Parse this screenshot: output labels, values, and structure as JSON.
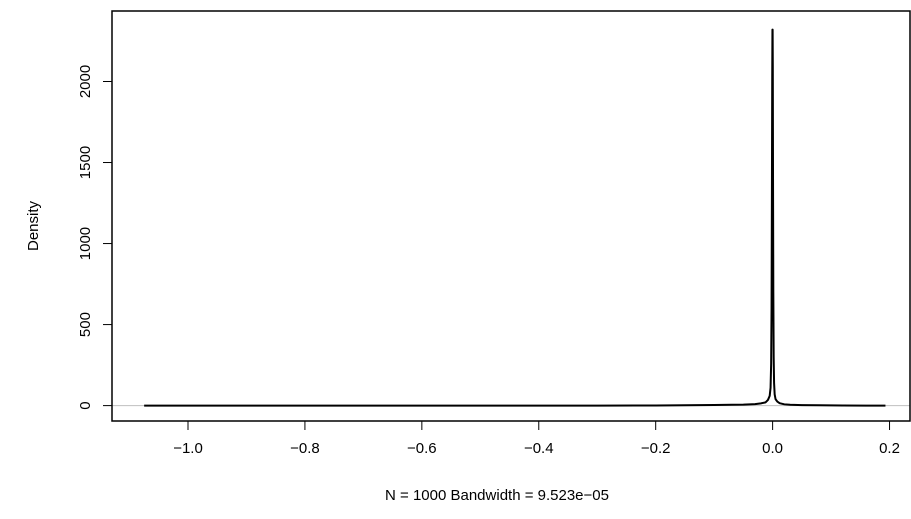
{
  "chart_data": {
    "type": "line",
    "title": "",
    "xlabel": "N = 1000   Bandwidth = 9.523e−05",
    "ylabel": "Density",
    "xlim": [
      -1.13,
      0.235
    ],
    "ylim": [
      -95,
      2435
    ],
    "x_ticks": [
      -1.0,
      -0.8,
      -0.6,
      -0.4,
      -0.2,
      0.0,
      0.2
    ],
    "x_tick_labels": [
      "−1.0",
      "−0.8",
      "−0.6",
      "−0.4",
      "−0.2",
      "0.0",
      "0.2"
    ],
    "y_ticks": [
      0,
      500,
      1000,
      1500,
      2000
    ],
    "y_tick_labels": [
      "0",
      "500",
      "1000",
      "1500",
      "2000"
    ],
    "zero_line": true,
    "grid": false,
    "series": [
      {
        "color": "#000000",
        "x": [
          -1.075,
          -0.8,
          -0.6,
          -0.4,
          -0.3,
          -0.2,
          -0.15,
          -0.1,
          -0.07,
          -0.05,
          -0.03,
          -0.02,
          -0.012,
          -0.008,
          -0.005,
          -0.0035,
          -0.0025,
          -0.0018,
          -0.0012,
          -0.0007,
          -0.0003,
          0.0,
          0.0003,
          0.0007,
          0.0012,
          0.0018,
          0.0025,
          0.0035,
          0.005,
          0.008,
          0.012,
          0.02,
          0.03,
          0.05,
          0.08,
          0.12,
          0.16,
          0.193
        ],
        "y": [
          0,
          0,
          0,
          0,
          0,
          1,
          2,
          4,
          5,
          6,
          9,
          14,
          20,
          35,
          60,
          110,
          260,
          600,
          1300,
          2000,
          2320,
          2320,
          2100,
          1400,
          700,
          300,
          140,
          70,
          40,
          25,
          15,
          8,
          5,
          3,
          2,
          1,
          0,
          0
        ]
      }
    ]
  }
}
